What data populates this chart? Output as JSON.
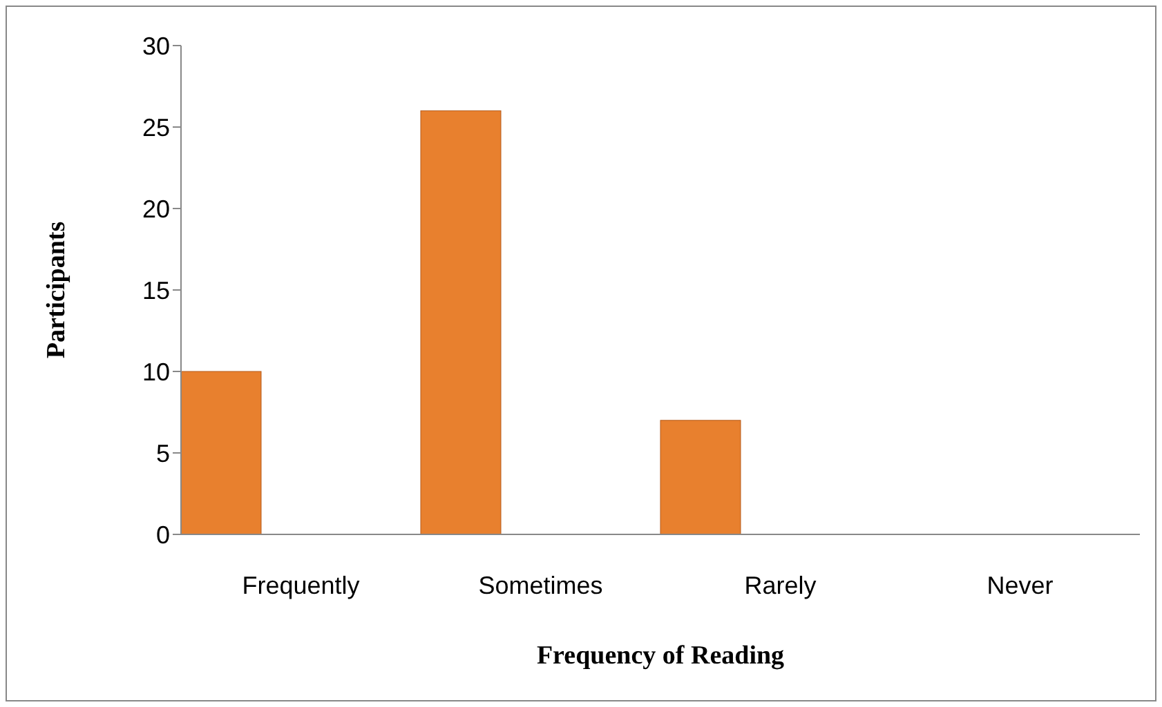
{
  "chart_data": {
    "type": "bar",
    "xlabel": "Frequency of Reading",
    "ylabel": "Participants",
    "categories": [
      "Frequently",
      "Sometimes",
      "Rarely",
      "Never"
    ],
    "values": [
      10,
      26,
      7,
      0
    ],
    "color": "#e8802e",
    "ylim": [
      0,
      30
    ],
    "yticks": [
      0,
      5,
      10,
      15,
      20,
      25,
      30
    ],
    "grid": false
  }
}
